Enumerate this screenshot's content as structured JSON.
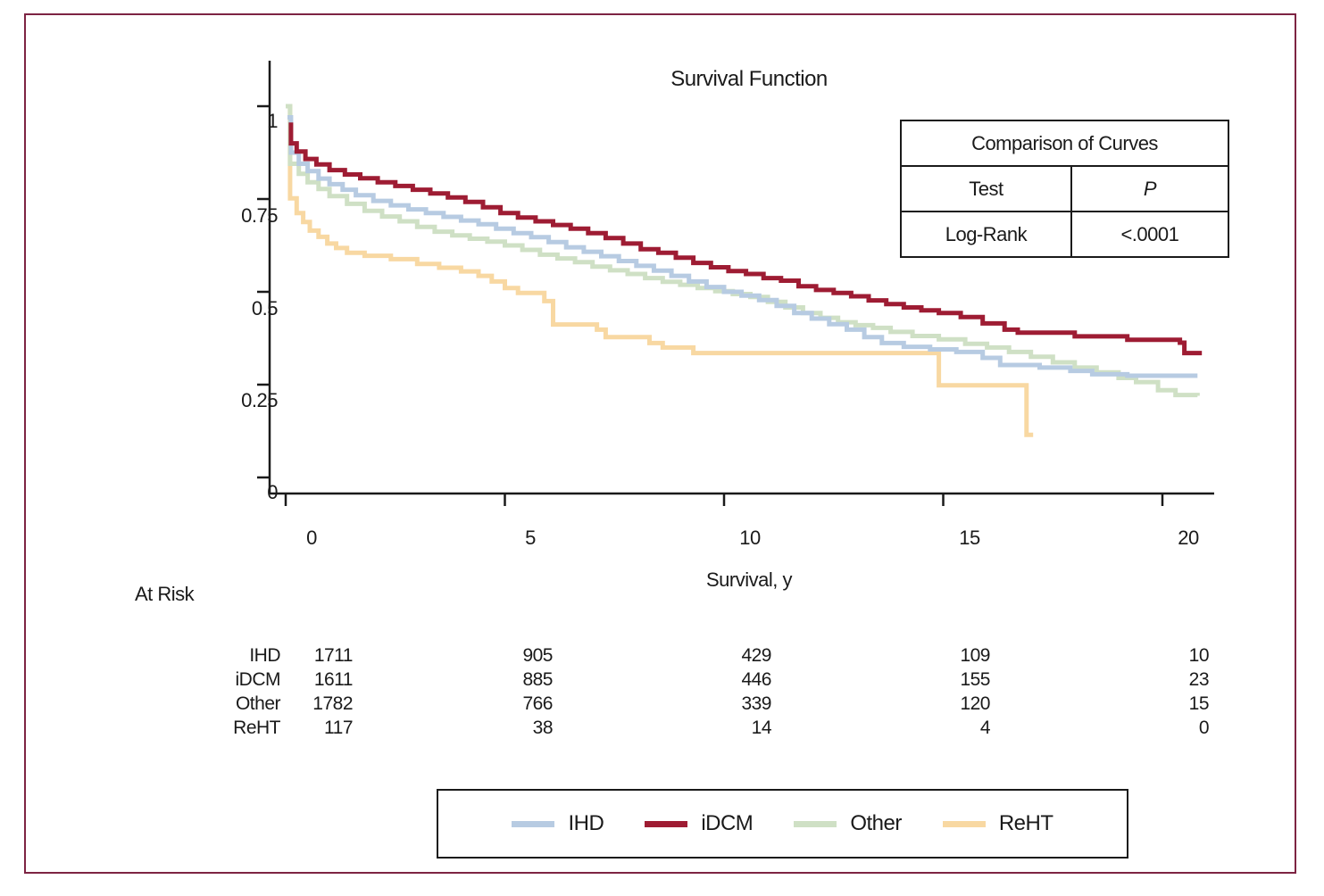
{
  "frame": {
    "border_color": "#7d2443"
  },
  "title": "Survival Function",
  "comparison_table": {
    "title": "Comparison of Curves",
    "col_test": "Test",
    "col_p": "P",
    "row_test": "Log-Rank",
    "row_p": "<.0001"
  },
  "axes": {
    "x": {
      "label": "Survival, y",
      "tick_labels": [
        "0",
        "5",
        "10",
        "15",
        "20"
      ],
      "tick_values": [
        0,
        5,
        10,
        15,
        20
      ],
      "range": [
        0,
        21.2
      ]
    },
    "y": {
      "tick_labels": [
        "1",
        "0.75",
        "0.5",
        "0.25",
        "0"
      ],
      "tick_values": [
        1,
        0.75,
        0.5,
        0.25,
        0
      ],
      "range": [
        0,
        1.06
      ]
    }
  },
  "at_risk": {
    "heading": "At Risk",
    "rows": [
      {
        "label": "IHD",
        "counts": [
          "1711",
          "905",
          "429",
          "109",
          "10"
        ]
      },
      {
        "label": "iDCM",
        "counts": [
          "1611",
          "885",
          "446",
          "155",
          "23"
        ]
      },
      {
        "label": "Other",
        "counts": [
          "1782",
          "766",
          "339",
          "120",
          "15"
        ]
      },
      {
        "label": "ReHT",
        "counts": [
          "117",
          "38",
          "14",
          "4",
          "0"
        ]
      }
    ]
  },
  "legend": {
    "items": [
      {
        "label": "IHD",
        "color": "#b7cbe2"
      },
      {
        "label": "iDCM",
        "color": "#9e1c33"
      },
      {
        "label": "Other",
        "color": "#cfe0c5"
      },
      {
        "label": "ReHT",
        "color": "#f8d8a2"
      }
    ]
  },
  "chart_data": {
    "type": "line",
    "subtype": "kaplan-meier-step",
    "title": "Survival Function",
    "xlabel": "Survival, y",
    "ylabel": "",
    "xlim": [
      0,
      21.2
    ],
    "ylim": [
      0,
      1.06
    ],
    "grid": false,
    "legend_position": "bottom",
    "annotations": {
      "test": "Log-Rank",
      "p_value": "<.0001"
    },
    "series": [
      {
        "name": "ReHT",
        "color": "#f8d8a2",
        "points": [
          [
            0,
            1.0
          ],
          [
            0.1,
            0.752
          ],
          [
            0.25,
            0.712
          ],
          [
            0.4,
            0.688
          ],
          [
            0.55,
            0.665
          ],
          [
            0.75,
            0.648
          ],
          [
            0.95,
            0.63
          ],
          [
            1.15,
            0.618
          ],
          [
            1.4,
            0.605
          ],
          [
            1.8,
            0.597
          ],
          [
            2.4,
            0.588
          ],
          [
            3.0,
            0.575
          ],
          [
            3.5,
            0.565
          ],
          [
            4.0,
            0.555
          ],
          [
            4.4,
            0.543
          ],
          [
            4.7,
            0.528
          ],
          [
            5.0,
            0.51
          ],
          [
            5.3,
            0.497
          ],
          [
            5.9,
            0.475
          ],
          [
            6.1,
            0.412
          ],
          [
            7.1,
            0.398
          ],
          [
            7.3,
            0.378
          ],
          [
            8.3,
            0.362
          ],
          [
            8.6,
            0.35
          ],
          [
            9.3,
            0.335
          ],
          [
            14.9,
            0.248
          ],
          [
            16.9,
            0.115
          ],
          [
            17.05,
            0.115
          ]
        ]
      },
      {
        "name": "Other",
        "color": "#cfe0c5",
        "points": [
          [
            0,
            1.0
          ],
          [
            0.1,
            0.845
          ],
          [
            0.3,
            0.818
          ],
          [
            0.5,
            0.795
          ],
          [
            0.75,
            0.777
          ],
          [
            1.0,
            0.758
          ],
          [
            1.4,
            0.737
          ],
          [
            1.8,
            0.718
          ],
          [
            2.2,
            0.703
          ],
          [
            2.6,
            0.69
          ],
          [
            3.0,
            0.675
          ],
          [
            3.4,
            0.662
          ],
          [
            3.8,
            0.652
          ],
          [
            4.2,
            0.643
          ],
          [
            4.6,
            0.635
          ],
          [
            5.0,
            0.625
          ],
          [
            5.4,
            0.613
          ],
          [
            5.8,
            0.6
          ],
          [
            6.2,
            0.59
          ],
          [
            6.6,
            0.58
          ],
          [
            7.0,
            0.568
          ],
          [
            7.4,
            0.558
          ],
          [
            7.8,
            0.548
          ],
          [
            8.2,
            0.537
          ],
          [
            8.6,
            0.527
          ],
          [
            9.0,
            0.519
          ],
          [
            9.4,
            0.51
          ],
          [
            9.8,
            0.502
          ],
          [
            10.2,
            0.494
          ],
          [
            10.6,
            0.486
          ],
          [
            11.0,
            0.473
          ],
          [
            11.4,
            0.458
          ],
          [
            11.8,
            0.443
          ],
          [
            12.2,
            0.43
          ],
          [
            12.6,
            0.418
          ],
          [
            13.0,
            0.41
          ],
          [
            13.4,
            0.403
          ],
          [
            13.8,
            0.392
          ],
          [
            14.3,
            0.381
          ],
          [
            14.9,
            0.372
          ],
          [
            15.5,
            0.36
          ],
          [
            16.0,
            0.35
          ],
          [
            16.5,
            0.338
          ],
          [
            17.0,
            0.325
          ],
          [
            17.5,
            0.31
          ],
          [
            18.0,
            0.296
          ],
          [
            18.5,
            0.283
          ],
          [
            19.0,
            0.268
          ],
          [
            19.4,
            0.257
          ],
          [
            19.9,
            0.235
          ],
          [
            20.3,
            0.222
          ],
          [
            20.8,
            0.22
          ]
        ]
      },
      {
        "name": "IHD",
        "color": "#b7cbe2",
        "points": [
          [
            0.04,
            0.97
          ],
          [
            0.12,
            0.875
          ],
          [
            0.3,
            0.845
          ],
          [
            0.5,
            0.825
          ],
          [
            0.75,
            0.805
          ],
          [
            1.0,
            0.79
          ],
          [
            1.3,
            0.775
          ],
          [
            1.6,
            0.76
          ],
          [
            2.0,
            0.745
          ],
          [
            2.4,
            0.733
          ],
          [
            2.8,
            0.722
          ],
          [
            3.2,
            0.712
          ],
          [
            3.6,
            0.702
          ],
          [
            4.0,
            0.692
          ],
          [
            4.4,
            0.682
          ],
          [
            4.8,
            0.67
          ],
          [
            5.2,
            0.658
          ],
          [
            5.6,
            0.647
          ],
          [
            6.0,
            0.634
          ],
          [
            6.4,
            0.62
          ],
          [
            6.8,
            0.608
          ],
          [
            7.2,
            0.596
          ],
          [
            7.6,
            0.583
          ],
          [
            8.0,
            0.57
          ],
          [
            8.4,
            0.557
          ],
          [
            8.8,
            0.543
          ],
          [
            9.2,
            0.528
          ],
          [
            9.6,
            0.513
          ],
          [
            10.0,
            0.5
          ],
          [
            10.4,
            0.49
          ],
          [
            10.8,
            0.478
          ],
          [
            11.2,
            0.462
          ],
          [
            11.6,
            0.443
          ],
          [
            12.0,
            0.428
          ],
          [
            12.4,
            0.413
          ],
          [
            12.8,
            0.398
          ],
          [
            13.2,
            0.378
          ],
          [
            13.6,
            0.362
          ],
          [
            14.1,
            0.352
          ],
          [
            14.7,
            0.345
          ],
          [
            15.3,
            0.338
          ],
          [
            15.9,
            0.322
          ],
          [
            16.3,
            0.303
          ],
          [
            17.2,
            0.296
          ],
          [
            17.9,
            0.287
          ],
          [
            18.4,
            0.278
          ],
          [
            19.2,
            0.274
          ],
          [
            20.8,
            0.274
          ]
        ]
      },
      {
        "name": "iDCM",
        "color": "#9e1c33",
        "points": [
          [
            0.07,
            0.95
          ],
          [
            0.12,
            0.9
          ],
          [
            0.25,
            0.878
          ],
          [
            0.45,
            0.858
          ],
          [
            0.7,
            0.843
          ],
          [
            1.0,
            0.828
          ],
          [
            1.35,
            0.816
          ],
          [
            1.7,
            0.806
          ],
          [
            2.1,
            0.795
          ],
          [
            2.5,
            0.785
          ],
          [
            2.9,
            0.775
          ],
          [
            3.3,
            0.765
          ],
          [
            3.7,
            0.754
          ],
          [
            4.1,
            0.742
          ],
          [
            4.5,
            0.728
          ],
          [
            4.9,
            0.712
          ],
          [
            5.3,
            0.7
          ],
          [
            5.7,
            0.69
          ],
          [
            6.1,
            0.68
          ],
          [
            6.5,
            0.67
          ],
          [
            6.9,
            0.658
          ],
          [
            7.3,
            0.645
          ],
          [
            7.7,
            0.63
          ],
          [
            8.1,
            0.615
          ],
          [
            8.5,
            0.605
          ],
          [
            8.9,
            0.592
          ],
          [
            9.3,
            0.578
          ],
          [
            9.7,
            0.566
          ],
          [
            10.1,
            0.556
          ],
          [
            10.5,
            0.548
          ],
          [
            10.9,
            0.537
          ],
          [
            11.3,
            0.53
          ],
          [
            11.7,
            0.515
          ],
          [
            12.1,
            0.505
          ],
          [
            12.5,
            0.497
          ],
          [
            12.9,
            0.488
          ],
          [
            13.3,
            0.477
          ],
          [
            13.7,
            0.467
          ],
          [
            14.1,
            0.458
          ],
          [
            14.5,
            0.45
          ],
          [
            14.9,
            0.443
          ],
          [
            15.4,
            0.432
          ],
          [
            15.9,
            0.415
          ],
          [
            16.4,
            0.398
          ],
          [
            16.7,
            0.39
          ],
          [
            18.0,
            0.38
          ],
          [
            19.2,
            0.371
          ],
          [
            20.4,
            0.363
          ],
          [
            20.5,
            0.335
          ],
          [
            20.9,
            0.335
          ]
        ]
      }
    ]
  }
}
